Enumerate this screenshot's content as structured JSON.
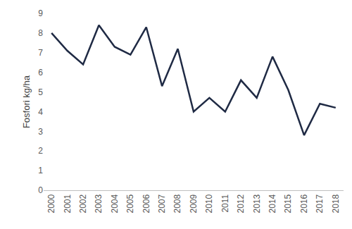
{
  "chart_data": {
    "type": "line",
    "y_label": "Fosfori kg/ha",
    "categories": [
      "2000",
      "2001",
      "2002",
      "2003",
      "2004",
      "2005",
      "2006",
      "2007",
      "2008",
      "2009",
      "2010",
      "2011",
      "2012",
      "2013",
      "2014",
      "2015",
      "2016",
      "2017",
      "2018"
    ],
    "values": [
      8.0,
      7.1,
      6.4,
      8.4,
      7.3,
      6.9,
      8.3,
      5.3,
      7.2,
      4.0,
      4.7,
      4.0,
      5.6,
      4.7,
      6.8,
      5.1,
      2.8,
      4.4,
      4.2
    ],
    "color": "#1f2a44",
    "ylim": [
      0,
      9
    ],
    "yticks": [
      0,
      1,
      2,
      3,
      4,
      5,
      6,
      7,
      8,
      9
    ],
    "grid": false
  }
}
